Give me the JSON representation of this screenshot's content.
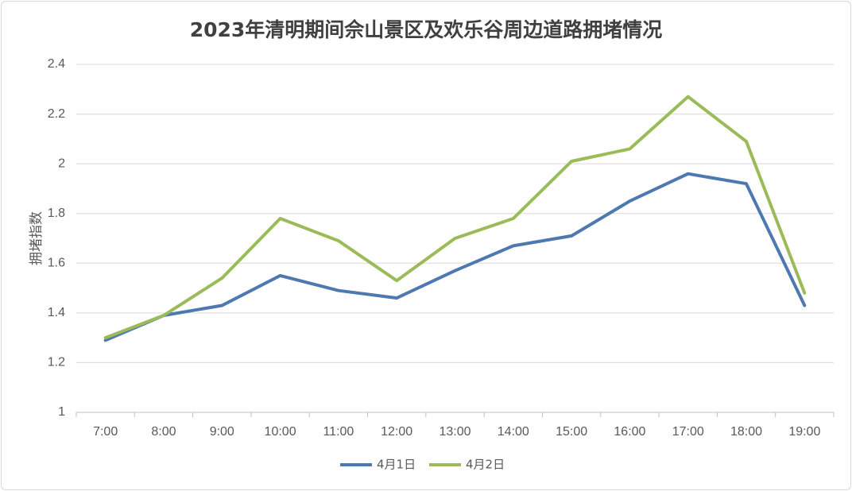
{
  "chart_data": {
    "type": "line",
    "title": "2023年清明期间佘山景区及欢乐谷周边道路拥堵情况",
    "ylabel": "拥堵指数",
    "xlabel": "",
    "categories": [
      "7:00",
      "8:00",
      "9:00",
      "10:00",
      "11:00",
      "12:00",
      "13:00",
      "14:00",
      "15:00",
      "16:00",
      "17:00",
      "18:00",
      "19:00"
    ],
    "yticks": [
      "1",
      "1.2",
      "1.4",
      "1.6",
      "1.8",
      "2",
      "2.2",
      "2.4"
    ],
    "ylim": [
      1,
      2.4
    ],
    "grid": true,
    "legend_position": "bottom",
    "series": [
      {
        "name": "4月1日",
        "color": "#4e79b0",
        "values": [
          1.29,
          1.39,
          1.43,
          1.55,
          1.49,
          1.46,
          1.57,
          1.67,
          1.71,
          1.85,
          1.96,
          1.92,
          1.43
        ]
      },
      {
        "name": "4月2日",
        "color": "#9bbb59",
        "values": [
          1.3,
          1.39,
          1.54,
          1.78,
          1.69,
          1.53,
          1.7,
          1.78,
          2.01,
          2.06,
          2.27,
          2.09,
          1.48
        ]
      }
    ]
  }
}
